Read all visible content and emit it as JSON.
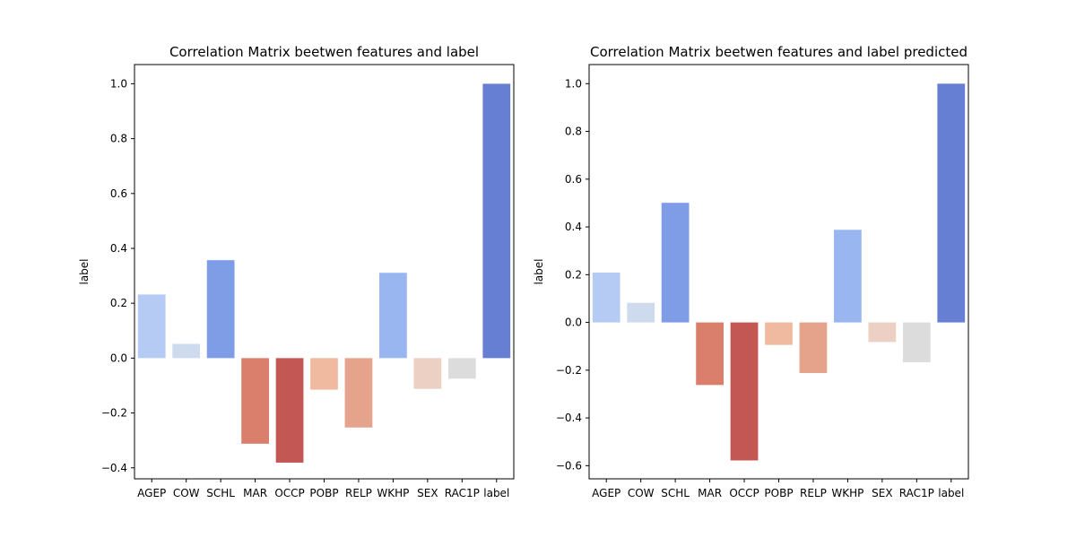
{
  "chart_data": [
    {
      "type": "bar",
      "title": "Correlation Matrix beetwen features and label",
      "xlabel": "",
      "ylabel": "label",
      "categories": [
        "AGEP",
        "COW",
        "SCHL",
        "MAR",
        "OCCP",
        "POBP",
        "RELP",
        "WKHP",
        "SEX",
        "RAC1P",
        "label"
      ],
      "values": [
        0.232,
        0.052,
        0.357,
        -0.312,
        -0.381,
        -0.115,
        -0.253,
        0.311,
        -0.112,
        -0.075,
        1.0
      ],
      "colors": [
        "#b5cbf3",
        "#cedaee",
        "#7e9de6",
        "#d97f6b",
        "#c35753",
        "#f0baa1",
        "#e6a38c",
        "#9ab6f1",
        "#ecd0c4",
        "#dcdcdc",
        "#677fd2"
      ],
      "ylim": [
        -0.44,
        1.07
      ],
      "yticks": [
        -0.4,
        -0.2,
        0.0,
        0.2,
        0.4,
        0.6,
        0.8,
        1.0
      ],
      "ytick_labels": [
        "−0.4",
        "−0.2",
        "0.0",
        "0.2",
        "0.4",
        "0.6",
        "0.8",
        "1.0"
      ],
      "grid": false
    },
    {
      "type": "bar",
      "title": "Correlation Matrix beetwen features and label predicted",
      "xlabel": "",
      "ylabel": "label",
      "categories": [
        "AGEP",
        "COW",
        "SCHL",
        "MAR",
        "OCCP",
        "POBP",
        "RELP",
        "WKHP",
        "SEX",
        "RAC1P",
        "label"
      ],
      "values": [
        0.209,
        0.082,
        0.501,
        -0.262,
        -0.578,
        -0.094,
        -0.212,
        0.388,
        -0.082,
        -0.167,
        1.0
      ],
      "colors": [
        "#b5cbf3",
        "#cedaee",
        "#7e9de6",
        "#d97f6b",
        "#c35753",
        "#f0baa1",
        "#e6a38c",
        "#9ab6f1",
        "#ecd0c4",
        "#dcdcdc",
        "#677fd2"
      ],
      "ylim": [
        -0.655,
        1.08
      ],
      "yticks": [
        -0.6,
        -0.4,
        -0.2,
        0.0,
        0.2,
        0.4,
        0.6,
        0.8,
        1.0
      ],
      "ytick_labels": [
        "−0.6",
        "−0.4",
        "−0.2",
        "0.0",
        "0.2",
        "0.4",
        "0.6",
        "0.8",
        "1.0"
      ],
      "grid": false
    }
  ]
}
